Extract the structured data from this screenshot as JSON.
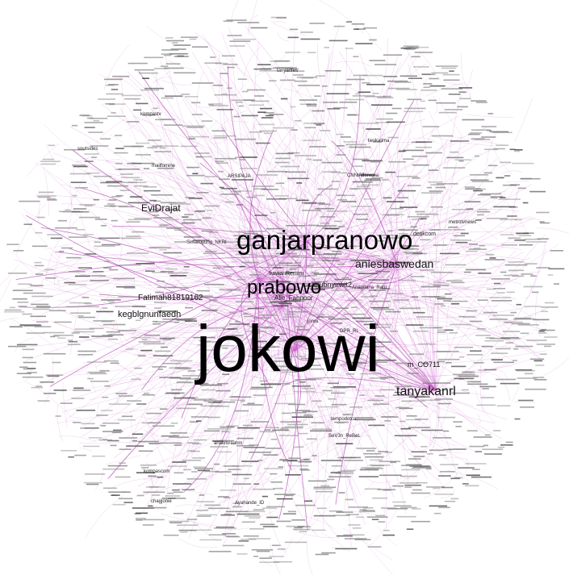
{
  "graph": {
    "edge_color": "#cc66cc",
    "edge_color_strong": "#a020a0",
    "node_text_color": "#111111",
    "hub_labels": [
      {
        "id": "jokowi",
        "text": "jokowi"
      },
      {
        "id": "ganjarpranowo",
        "text": "ganjarpranowo"
      },
      {
        "id": "prabowo",
        "text": "prabowo"
      },
      {
        "id": "aniesbaswedan",
        "text": "aniesbaswedan"
      },
      {
        "id": "tanyakanrl",
        "text": "tanyakanrl"
      },
      {
        "id": "evidrajat",
        "text": "EviDrajat"
      },
      {
        "id": "kegblgnunfaedh",
        "text": "kegblgnunfaedh"
      },
      {
        "id": "fatimah",
        "text": "Fatimah81819162"
      },
      {
        "id": "mco711",
        "text": "m_CO711"
      }
    ],
    "secondary_labels": [
      {
        "id": "cagubnyirwit",
        "text": "cagubnyirwit2"
      },
      {
        "id": "aliefahnoor",
        "text": "Alie_Fahnoor"
      },
      {
        "id": "irawan",
        "text": "IrawanRemmi"
      },
      {
        "id": "detikcom",
        "text": "detikcom"
      },
      {
        "id": "cnnindonesia",
        "text": "CNNIndonesia"
      },
      {
        "id": "arsipaja",
        "text": "ARSIPAJA"
      },
      {
        "id": "tanyarlfes",
        "text": "tanyarlfes"
      },
      {
        "id": "soutsides",
        "text": "soutsides"
      },
      {
        "id": "kompascom",
        "text": "kompascom"
      },
      {
        "id": "chagjonie",
        "text": "chagjonie"
      },
      {
        "id": "sewobanny",
        "text": "SeV3n_ReBeL"
      },
      {
        "id": "tempodotco",
        "text": "tempodotco"
      },
      {
        "id": "aakrhaaseng",
        "text": "anakrbraahm"
      },
      {
        "id": "lieskalima",
        "text": "lieskalima"
      },
      {
        "id": "metrotvnews",
        "text": "metrotvnews"
      },
      {
        "id": "ayahande",
        "text": "Ayahande_ID"
      },
      {
        "id": "kompastv",
        "text": "kompastv"
      },
      {
        "id": "baswedan",
        "text": "Simaruyung_NKRI"
      },
      {
        "id": "amnaganjar",
        "text": "Anagitaria_Ratu"
      },
      {
        "id": "jonru",
        "text": "jonru"
      },
      {
        "id": "dpr",
        "text": "DPR_RI"
      },
      {
        "id": "mailfomine",
        "text": "mailfomine"
      }
    ]
  }
}
